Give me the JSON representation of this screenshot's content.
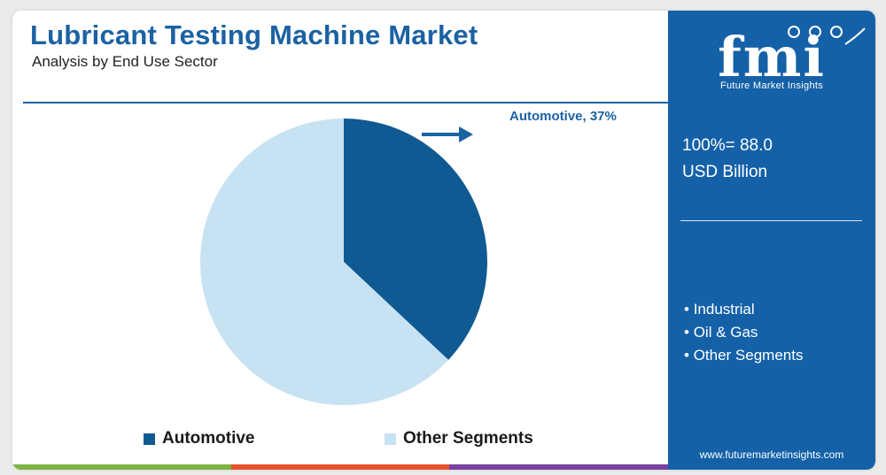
{
  "header": {
    "title": "Lubricant Testing Machine Market",
    "subtitle": "Analysis by End Use Sector"
  },
  "chart_data": {
    "type": "pie",
    "slices": [
      {
        "name": "Automotive",
        "value": 37,
        "color": "#0f5a92"
      },
      {
        "name": "Other Segments",
        "value": 63,
        "color": "#c7e2f2"
      }
    ],
    "callout": "Automotive, 37%",
    "legend_position": "bottom"
  },
  "sidebar": {
    "brand": "fmi",
    "brand_sub": "Future Market Insights",
    "total_line1": "100%= 88.0",
    "total_line2": "USD Billion",
    "segments": [
      "Industrial",
      "Oil & Gas",
      "Other Segments"
    ],
    "website": "www.futuremarketinsights.com"
  },
  "colors": {
    "brand_blue": "#1461a8",
    "title_blue": "#1b62a3",
    "bar_colors": [
      "#7cb342",
      "#e8552b",
      "#7b3fa0"
    ]
  }
}
